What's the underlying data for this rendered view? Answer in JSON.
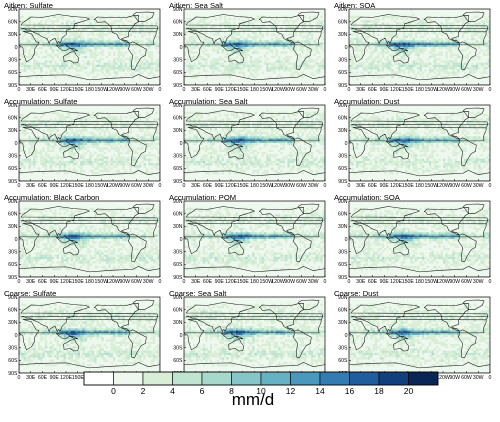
{
  "chart_data": {
    "type": "heatmap",
    "units": "mm/d",
    "panels": [
      {
        "title": "Aitken: Sulfate"
      },
      {
        "title": "Aitken: Sea Salt"
      },
      {
        "title": "Aitken: SOA"
      },
      {
        "title": "Accumulation: Sulfate"
      },
      {
        "title": "Accumulation: Sea Salt"
      },
      {
        "title": "Accumulation: Dust"
      },
      {
        "title": "Accumulation: Black Carbon"
      },
      {
        "title": "Accumulation: POM"
      },
      {
        "title": "Accumulation: SOA"
      },
      {
        "title": "Coarse: Sulfate"
      },
      {
        "title": "Coarse: Sea Salt"
      },
      {
        "title": "Coarse: Dust"
      }
    ],
    "lat_ticks": [
      "90N",
      "60N",
      "30N",
      "0",
      "30S",
      "60S",
      "90S"
    ],
    "lon_ticks": [
      "0",
      "30E",
      "60E",
      "90E",
      "120E",
      "150E",
      "180",
      "150W",
      "120W",
      "90W",
      "60W",
      "30W",
      "0"
    ],
    "colorbar": {
      "ticks": [
        "0",
        "2",
        "4",
        "6",
        "8",
        "10",
        "12",
        "14",
        "16",
        "18",
        "20"
      ],
      "colors": [
        "#ffffff",
        "#eff8ee",
        "#d8eed6",
        "#bfe4cf",
        "#a6d9cc",
        "#86c6c8",
        "#66b1c4",
        "#4a98bd",
        "#327bb3",
        "#1f5d9e",
        "#12407d",
        "#0a2657"
      ]
    }
  }
}
